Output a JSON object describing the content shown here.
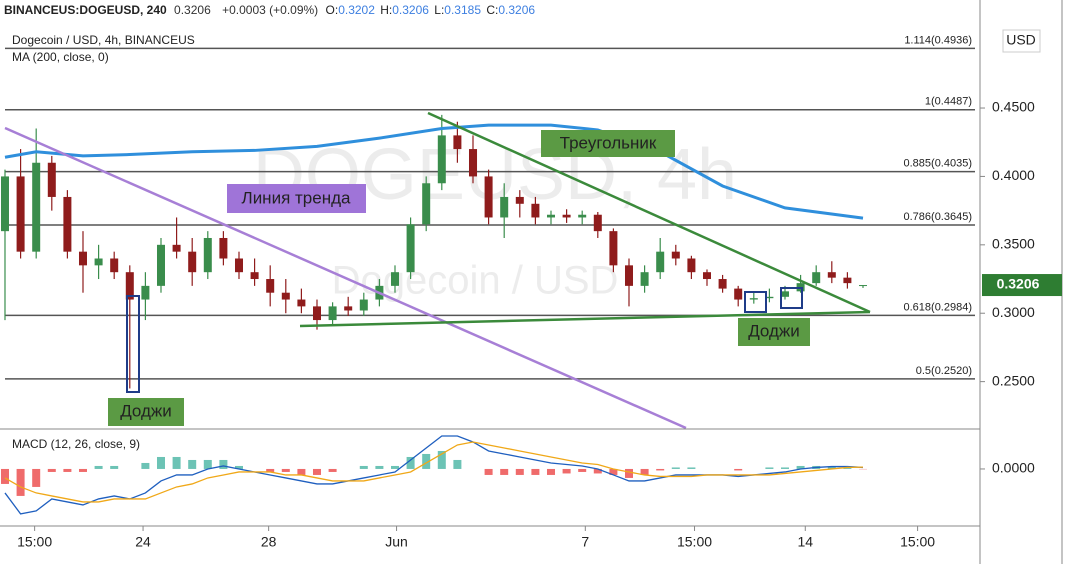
{
  "chart_data": {
    "type": "candlestick",
    "title": "Dogecoin / USD, 4h, BINANCEUS",
    "header": {
      "symbol": "BINANCEUS:DOGEUSD, 240",
      "price": "0.3206",
      "change": "+0.0003 (+0.09%)",
      "ohlc": [
        {
          "label": "O:",
          "value": "0.3202"
        },
        {
          "label": "H:",
          "value": "0.3206"
        },
        {
          "label": "L:",
          "value": "0.3185"
        },
        {
          "label": "C:",
          "value": "0.3206"
        }
      ]
    },
    "watermark": [
      "DOGEUSD, 4h",
      "Dogecoin / USD"
    ],
    "currency": "USD",
    "last_price": {
      "value": 0.3206,
      "label": "0.3206"
    },
    "xlim": [
      -0.32,
      62.5
    ],
    "xticks": [
      {
        "value": 1.9,
        "label": "15:00"
      },
      {
        "value": 8.85,
        "label": "24"
      },
      {
        "value": 16.9,
        "label": "28"
      },
      {
        "value": 25.1,
        "label": "Jun"
      },
      {
        "value": 37.2,
        "label": "7"
      },
      {
        "value": 44.2,
        "label": "15:00"
      },
      {
        "value": 51.3,
        "label": "14"
      },
      {
        "value": 58.5,
        "label": "15:00"
      }
    ],
    "ylim": [
      0.2161,
      0.5085
    ],
    "yticks": [
      {
        "value": 0.25,
        "label": "0.2500"
      },
      {
        "value": 0.3,
        "label": "0.3000"
      },
      {
        "value": 0.35,
        "label": "0.3500"
      },
      {
        "value": 0.4,
        "label": "0.4000"
      },
      {
        "value": 0.45,
        "label": "0.4500"
      }
    ],
    "up_color": "#3a8d4c",
    "down_color": "#8f1c1c",
    "candles": {
      "x": [
        0,
        1,
        2,
        3,
        4,
        5,
        6,
        7,
        8,
        9,
        10,
        11,
        12,
        13,
        14,
        15,
        16,
        17,
        18,
        19,
        20,
        21,
        22,
        23,
        24,
        25,
        26,
        27,
        28,
        29,
        30,
        31,
        32,
        33,
        34,
        35,
        36,
        37,
        38,
        39,
        40,
        41,
        42,
        43,
        44,
        45,
        46,
        47,
        48,
        49,
        50,
        51,
        52,
        53,
        54,
        55
      ],
      "open": [
        0.36,
        0.4,
        0.345,
        0.41,
        0.385,
        0.345,
        0.335,
        0.34,
        0.33,
        0.31,
        0.32,
        0.35,
        0.345,
        0.33,
        0.355,
        0.34,
        0.33,
        0.325,
        0.315,
        0.31,
        0.305,
        0.295,
        0.305,
        0.302,
        0.31,
        0.32,
        0.33,
        0.365,
        0.395,
        0.43,
        0.42,
        0.4,
        0.37,
        0.385,
        0.38,
        0.37,
        0.372,
        0.37,
        0.372,
        0.36,
        0.335,
        0.32,
        0.33,
        0.345,
        0.34,
        0.33,
        0.325,
        0.318,
        0.31,
        0.311,
        0.312,
        0.316,
        0.322,
        0.33,
        0.326,
        0.3202
      ],
      "high": [
        0.405,
        0.42,
        0.435,
        0.415,
        0.39,
        0.36,
        0.35,
        0.345,
        0.335,
        0.33,
        0.355,
        0.37,
        0.355,
        0.36,
        0.36,
        0.345,
        0.34,
        0.335,
        0.325,
        0.318,
        0.31,
        0.308,
        0.312,
        0.315,
        0.325,
        0.335,
        0.37,
        0.4,
        0.445,
        0.44,
        0.43,
        0.405,
        0.395,
        0.39,
        0.385,
        0.375,
        0.376,
        0.375,
        0.374,
        0.362,
        0.34,
        0.335,
        0.355,
        0.35,
        0.342,
        0.332,
        0.328,
        0.32,
        0.315,
        0.318,
        0.32,
        0.328,
        0.335,
        0.338,
        0.33,
        0.3206
      ],
      "low": [
        0.295,
        0.34,
        0.34,
        0.375,
        0.34,
        0.315,
        0.325,
        0.325,
        0.245,
        0.295,
        0.315,
        0.34,
        0.32,
        0.325,
        0.335,
        0.325,
        0.32,
        0.305,
        0.3,
        0.3,
        0.288,
        0.292,
        0.298,
        0.298,
        0.305,
        0.315,
        0.325,
        0.36,
        0.39,
        0.41,
        0.395,
        0.365,
        0.355,
        0.37,
        0.365,
        0.365,
        0.366,
        0.365,
        0.355,
        0.33,
        0.305,
        0.315,
        0.325,
        0.335,
        0.325,
        0.32,
        0.315,
        0.305,
        0.307,
        0.308,
        0.31,
        0.315,
        0.32,
        0.322,
        0.318,
        0.3185
      ],
      "close": [
        0.4,
        0.345,
        0.41,
        0.385,
        0.345,
        0.335,
        0.34,
        0.33,
        0.31,
        0.32,
        0.35,
        0.345,
        0.33,
        0.355,
        0.34,
        0.33,
        0.325,
        0.315,
        0.31,
        0.305,
        0.295,
        0.305,
        0.302,
        0.31,
        0.32,
        0.33,
        0.365,
        0.395,
        0.43,
        0.42,
        0.4,
        0.37,
        0.385,
        0.38,
        0.37,
        0.372,
        0.37,
        0.372,
        0.36,
        0.335,
        0.32,
        0.33,
        0.345,
        0.34,
        0.33,
        0.325,
        0.318,
        0.31,
        0.311,
        0.312,
        0.316,
        0.322,
        0.33,
        0.326,
        0.322,
        0.3206
      ]
    },
    "ma": {
      "name": "MA (200, close, 0)",
      "color": "#2f8fdc",
      "x": [
        0,
        2,
        5,
        8,
        12,
        16,
        20,
        24,
        28,
        31,
        35,
        38,
        42,
        46,
        50,
        55
      ],
      "values": [
        0.414,
        0.418,
        0.415,
        0.416,
        0.418,
        0.419,
        0.422,
        0.428,
        0.435,
        0.4375,
        0.4375,
        0.434,
        0.418,
        0.393,
        0.377,
        0.3695
      ]
    },
    "fib_levels": [
      {
        "value": 0.4936,
        "label": "1.114(0.4936)"
      },
      {
        "value": 0.4487,
        "label": "1(0.4487)"
      },
      {
        "value": 0.4035,
        "label": "0.885(0.4035)"
      },
      {
        "value": 0.3645,
        "label": "0.786(0.3645)"
      },
      {
        "value": 0.2984,
        "label": "0.618(0.2984)"
      },
      {
        "value": 0.252,
        "label": "0.5(0.2520)"
      }
    ],
    "annotations": [
      "Линия тренда",
      "Треугольник",
      "Доджи",
      "Доджи"
    ],
    "macd": {
      "name": "MACD (12, 26, close, 9)",
      "ylim": [
        -0.0187,
        0.013
      ],
      "yticks": [
        {
          "value": 0,
          "label": "0.0000"
        }
      ],
      "positive_color": "#6cc3b5",
      "negative_color": "#ef6b6b",
      "histogram": [
        -0.005,
        -0.009,
        -0.006,
        -0.001,
        -0.001,
        -0.001,
        0.001,
        0.001,
        0,
        0.002,
        0.004,
        0.004,
        0.003,
        0.003,
        0.003,
        0.001,
        0,
        -0.001,
        -0.001,
        -0.002,
        -0.002,
        -0.001,
        0,
        0.001,
        0.001,
        0.001,
        0.004,
        0.005,
        0.006,
        0.003,
        0,
        -0.002,
        -0.002,
        -0.002,
        -0.002,
        -0.002,
        -0.0015,
        -0.001,
        -0.0015,
        -0.002,
        -0.003,
        -0.002,
        -0.0005,
        0.0005,
        0.0005,
        0,
        0,
        -0.0005,
        0,
        0.0005,
        0.0005,
        0.001,
        0.001,
        0.0008,
        0.0003,
        -0.0001
      ],
      "macd": {
        "color": "#1f5fbf",
        "values": [
          -0.008,
          -0.015,
          -0.014,
          -0.01,
          -0.011,
          -0.012,
          -0.01,
          -0.009,
          -0.01,
          -0.008,
          -0.004,
          -0.002,
          -0.002,
          0,
          0.001,
          0,
          -0.001,
          -0.002,
          -0.003,
          -0.004,
          -0.005,
          -0.005,
          -0.004,
          -0.003,
          -0.002,
          -0.001,
          0.003,
          0.007,
          0.011,
          0.011,
          0.009,
          0.006,
          0.005,
          0.004,
          0.003,
          0.002,
          0.0015,
          0.001,
          0,
          -0.002,
          -0.004,
          -0.004,
          -0.003,
          -0.002,
          -0.002,
          -0.002,
          -0.002,
          -0.0025,
          -0.002,
          -0.0015,
          -0.001,
          0,
          0.0005,
          0.0008,
          0.0008,
          0.0005
        ]
      },
      "signal": {
        "color": "#f0a818",
        "values": [
          -0.003,
          -0.006,
          -0.008,
          -0.009,
          -0.01,
          -0.011,
          -0.011,
          -0.01,
          -0.01,
          -0.01,
          -0.008,
          -0.006,
          -0.005,
          -0.003,
          -0.002,
          -0.001,
          -0.001,
          -0.001,
          -0.002,
          -0.002,
          -0.003,
          -0.004,
          -0.004,
          -0.004,
          -0.003,
          -0.002,
          -0.001,
          0.002,
          0.005,
          0.008,
          0.009,
          0.008,
          0.007,
          0.006,
          0.005,
          0.004,
          0.003,
          0.002,
          0.0015,
          0,
          -0.001,
          -0.002,
          -0.0025,
          -0.0025,
          -0.0025,
          -0.002,
          -0.002,
          -0.002,
          -0.002,
          -0.002,
          -0.0015,
          -0.001,
          -0.0005,
          0,
          0.0005,
          0.0006
        ]
      }
    }
  }
}
